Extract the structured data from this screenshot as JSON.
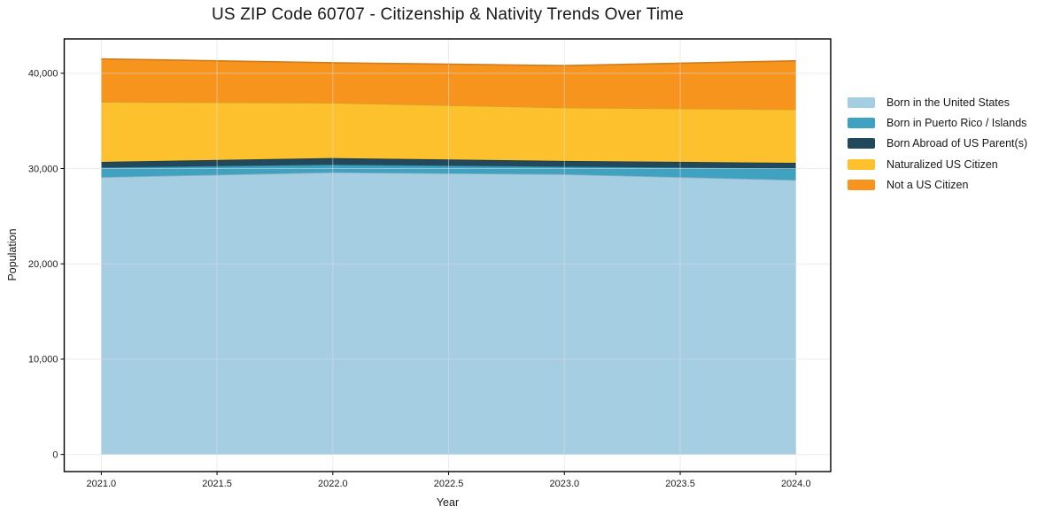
{
  "title": "US ZIP Code 60707 - Citizenship & Nativity Trends Over Time",
  "chart_data": {
    "type": "area",
    "stacked": true,
    "title": "US ZIP Code 60707 - Citizenship & Nativity Trends Over Time",
    "xlabel": "Year",
    "ylabel": "Population",
    "x": [
      2021,
      2022,
      2023,
      2024
    ],
    "series": [
      {
        "name": "Born in the United States",
        "color": "#a5cee3",
        "values": [
          29100,
          29600,
          29400,
          28800
        ]
      },
      {
        "name": "Born in Puerto Rico / Islands",
        "color": "#3fa2c1",
        "values": [
          1000,
          800,
          800,
          1200
        ]
      },
      {
        "name": "Born Abroad of US Parent(s)",
        "color": "#22485b",
        "values": [
          600,
          700,
          600,
          600
        ]
      },
      {
        "name": "Naturalized US Citizen",
        "color": "#fdc12d",
        "values": [
          6300,
          5800,
          5600,
          5600
        ]
      },
      {
        "name": "Not a US Citizen",
        "color": "#f7941e",
        "values": [
          4500,
          4200,
          4400,
          5100
        ]
      }
    ],
    "stacked_totals": [
      41500,
      41100,
      40800,
      41300
    ],
    "xticks": {
      "values": [
        2021,
        2021.5,
        2022,
        2022.5,
        2023,
        2023.5,
        2024
      ],
      "labels": [
        "2021.0",
        "2021.5",
        "2022.0",
        "2022.5",
        "2023.0",
        "2023.5",
        "2024.0"
      ]
    },
    "yticks": {
      "values": [
        0,
        10000,
        20000,
        30000,
        40000
      ],
      "labels": [
        "0",
        "10,000",
        "20,000",
        "30,000",
        "40,000"
      ]
    },
    "xlim": [
      2020.84,
      2024.15
    ],
    "ylim": [
      -1800,
      43600
    ],
    "grid": true,
    "legend_position": "right",
    "colors": {
      "plot_border": "#000000",
      "gridline": "#dcdcdc",
      "text": "#161616",
      "background": "#ffffff"
    }
  }
}
